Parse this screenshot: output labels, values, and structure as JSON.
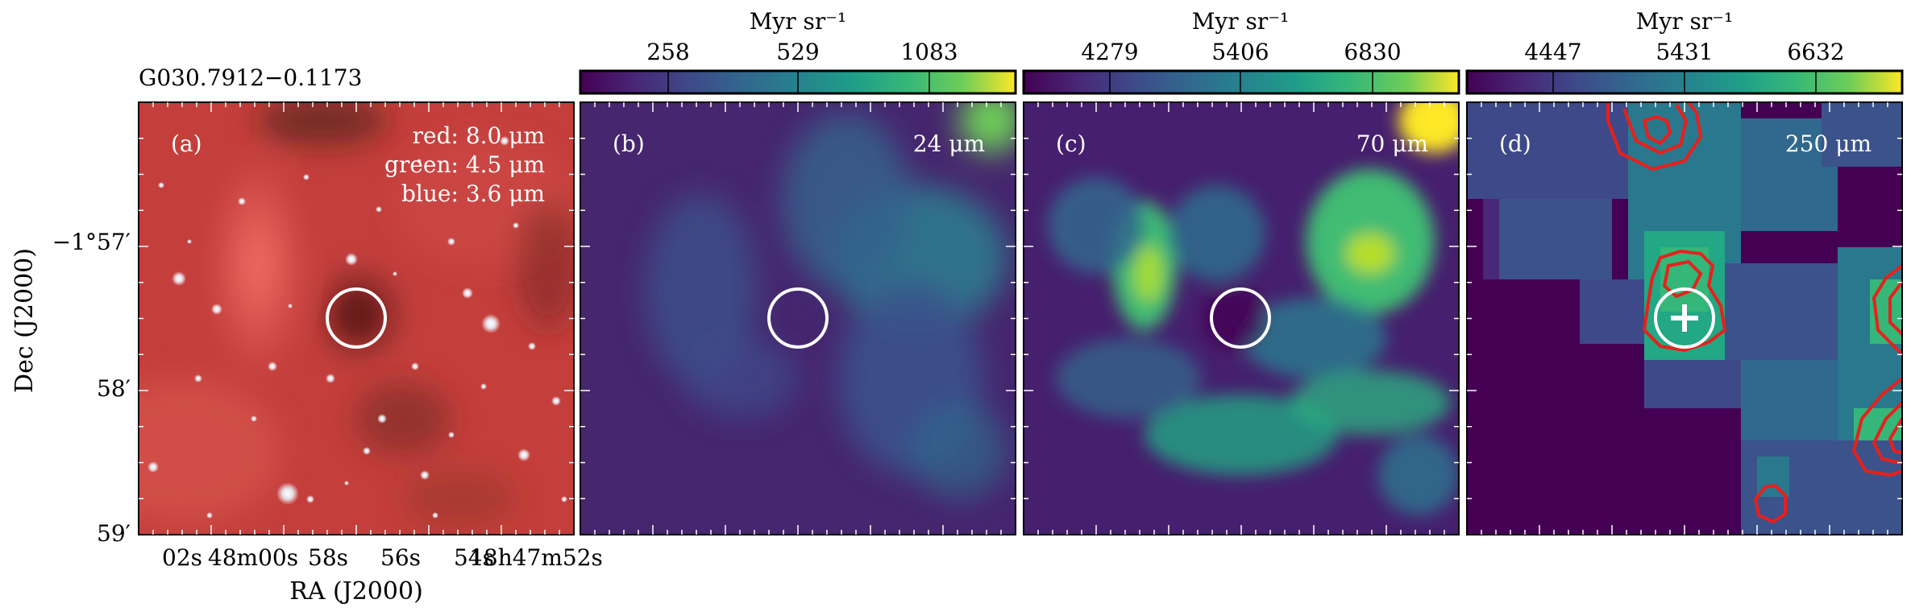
{
  "source_name": "G030.7912−0.1173",
  "axes": {
    "ylabel": "Dec (J2000)",
    "xlabel": "RA (J2000)",
    "y_ticks": [
      "−1°57′",
      "58′",
      "59′"
    ],
    "x_ticks": [
      "02s",
      "48m00s",
      "58s",
      "56s",
      "54s",
      "18h47m52s"
    ]
  },
  "panels": [
    {
      "tag": "(a)",
      "label_lines": [
        "red: 8.0 μm",
        "green: 4.5 μm",
        "blue: 3.6 μm"
      ],
      "colorbar": null
    },
    {
      "tag": "(b)",
      "label_lines": [
        "24 μm"
      ],
      "colorbar": {
        "unit": "Myr sr⁻¹",
        "ticks": [
          "258",
          "529",
          "1083"
        ]
      }
    },
    {
      "tag": "(c)",
      "label_lines": [
        "70 μm"
      ],
      "colorbar": {
        "unit": "Myr sr⁻¹",
        "ticks": [
          "4279",
          "5406",
          "6830"
        ]
      }
    },
    {
      "tag": "(d)",
      "label_lines": [
        "250 μm"
      ],
      "colorbar": {
        "unit": "Myr sr⁻¹",
        "ticks": [
          "4447",
          "5431",
          "6632"
        ]
      }
    }
  ],
  "colors": {
    "viridis_low": "#440154",
    "viridis_mid": "#21918c",
    "viridis_high": "#fde725",
    "rgb_base": "#c83c3c",
    "marker": "#ffffff",
    "contour": "#e8201a"
  }
}
